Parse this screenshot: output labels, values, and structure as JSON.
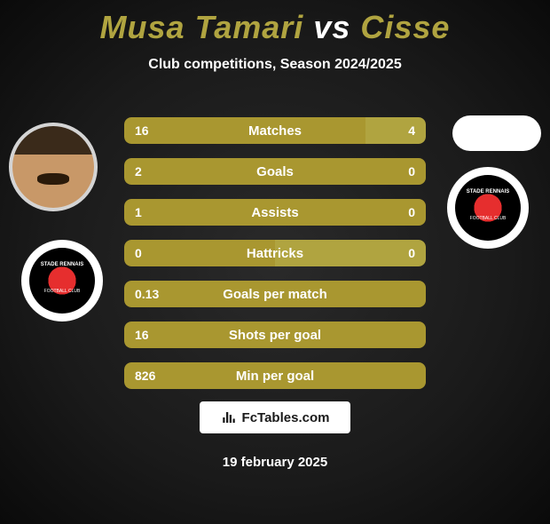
{
  "title_color": "#b0a440",
  "player1": {
    "name": "Musa Tamari"
  },
  "vs_word": "vs",
  "player2": {
    "name": "Cisse"
  },
  "subtitle": "Club competitions, Season 2024/2025",
  "club_badge": {
    "line1": "STADE RENNAIS",
    "line2": "FOOTBALL CLUB"
  },
  "colors": {
    "bar_p1": "#a99730",
    "bar_p2": "#b0a440",
    "bar_bg": "#222222"
  },
  "stats": [
    {
      "label": "Matches",
      "p1": "16",
      "p2": "4",
      "p1_pct": 80,
      "p2_pct": 20
    },
    {
      "label": "Goals",
      "p1": "2",
      "p2": "0",
      "p1_pct": 100,
      "p2_pct": 0
    },
    {
      "label": "Assists",
      "p1": "1",
      "p2": "0",
      "p1_pct": 100,
      "p2_pct": 0
    },
    {
      "label": "Hattricks",
      "p1": "0",
      "p2": "0",
      "p1_pct": 50,
      "p2_pct": 50
    },
    {
      "label": "Goals per match",
      "p1": "0.13",
      "p2": "",
      "p1_pct": 100,
      "p2_pct": 0
    },
    {
      "label": "Shots per goal",
      "p1": "16",
      "p2": "",
      "p1_pct": 100,
      "p2_pct": 0
    },
    {
      "label": "Min per goal",
      "p1": "826",
      "p2": "",
      "p1_pct": 100,
      "p2_pct": 0
    }
  ],
  "logo_text": "FcTables.com",
  "date": "19 february 2025"
}
